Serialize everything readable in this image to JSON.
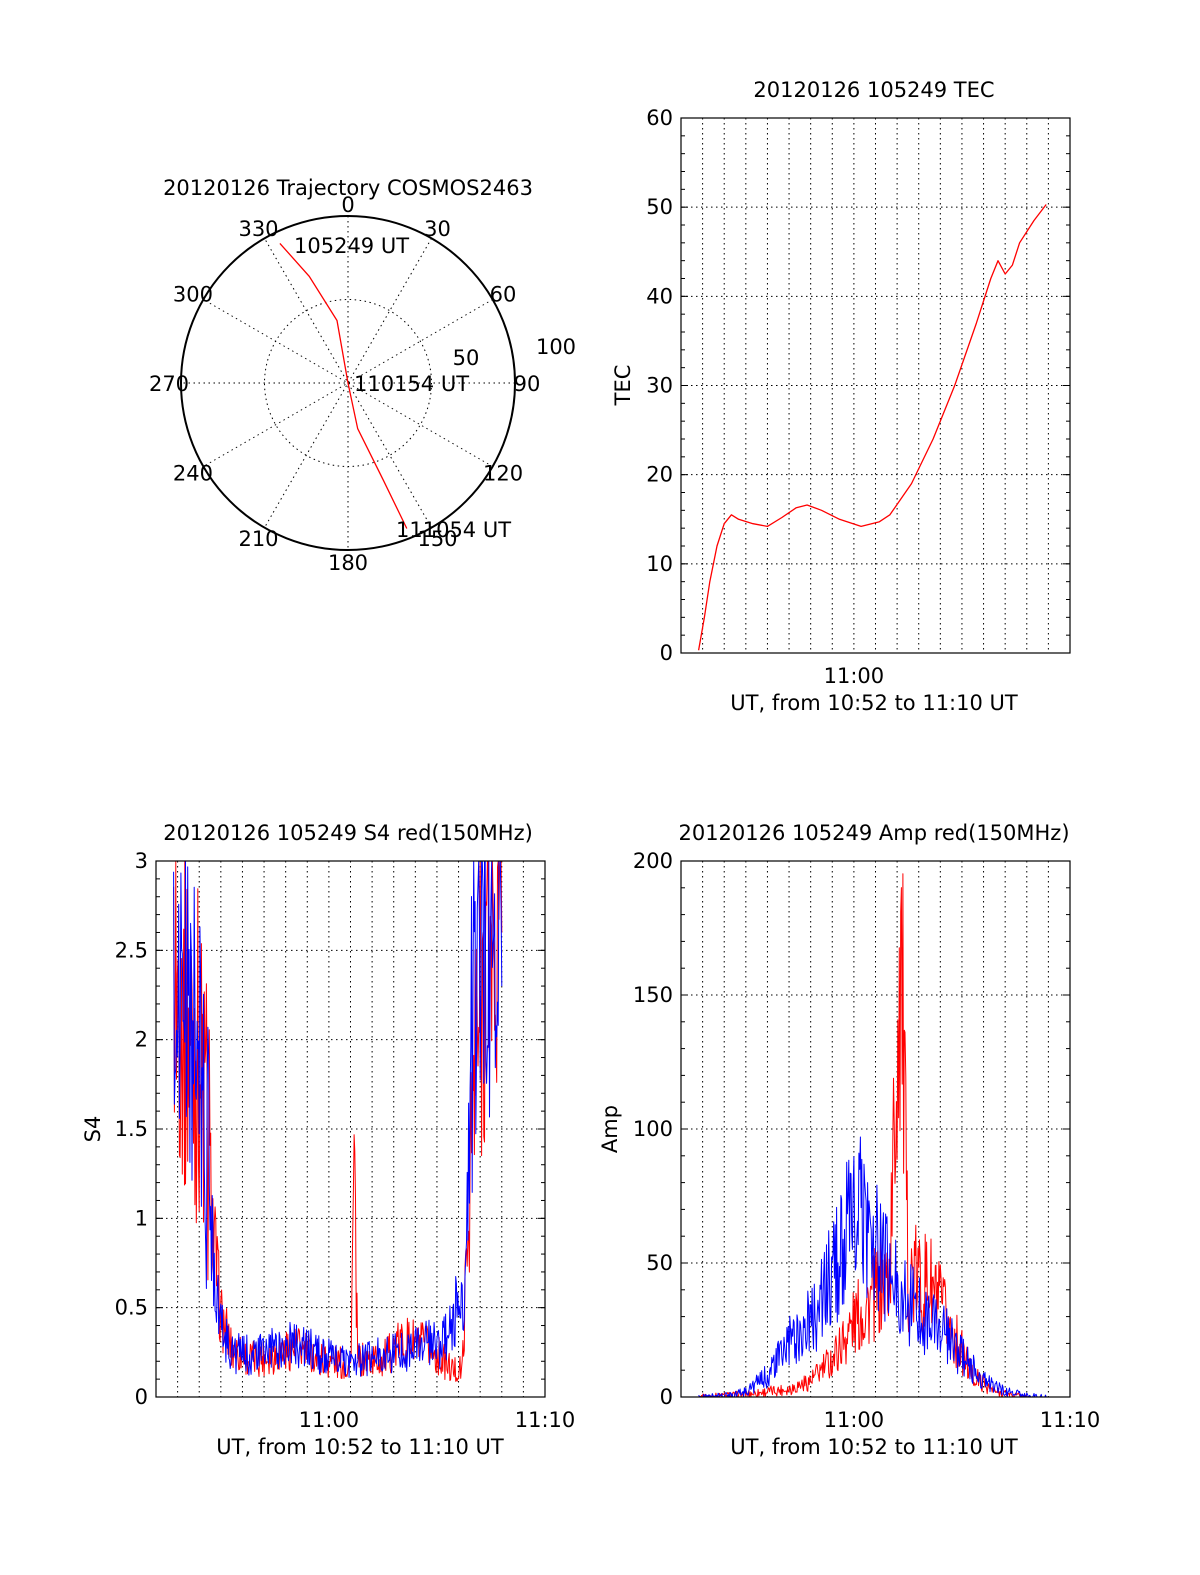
{
  "chart_data": [
    {
      "id": "trajectory",
      "type": "polar",
      "title": "20120126 Trajectory COSMOS2463",
      "azimuth_labels": [
        "0",
        "30",
        "60",
        "90",
        "120",
        "150",
        "180",
        "210",
        "240",
        "270",
        "300",
        "330"
      ],
      "ring_labels": [
        "50",
        "100"
      ],
      "series": [
        {
          "color": "#ff0000",
          "points_az_dist": [
            [
              334,
              93
            ],
            [
              340,
              68
            ],
            [
              350,
              38
            ],
            [
              0,
              0
            ],
            [
              168,
              28
            ],
            [
              160,
              62
            ],
            [
              158,
              94
            ]
          ]
        }
      ],
      "annotations": [
        {
          "text": "105249 UT",
          "at": "start"
        },
        {
          "text": "110154 UT",
          "at": "center"
        },
        {
          "text": "111054 UT",
          "at": "end"
        }
      ]
    },
    {
      "id": "tec",
      "type": "line",
      "title": "20120126 105249 TEC",
      "ylabel": "TEC",
      "xlabel": "UT, from 10:52 to 11:10 UT",
      "xlim": [
        "10:52",
        "11:10"
      ],
      "ylim": [
        0,
        60
      ],
      "yticks": [
        "0",
        "10",
        "20",
        "30",
        "40",
        "50",
        "60"
      ],
      "xtick_labels": [
        {
          "at": "11:00",
          "label": "11:00"
        }
      ],
      "grid": true,
      "series": [
        {
          "color": "#ff0000",
          "points": [
            [
              "10:52:49",
              0.3
            ],
            [
              "10:53:05",
              4
            ],
            [
              "10:53:20",
              8
            ],
            [
              "10:53:40",
              12
            ],
            [
              "10:54:00",
              14.5
            ],
            [
              "10:54:20",
              15.5
            ],
            [
              "10:54:40",
              15
            ],
            [
              "10:55:20",
              14.5
            ],
            [
              "10:56:00",
              14.2
            ],
            [
              "10:56:40",
              15.2
            ],
            [
              "10:57:20",
              16.3
            ],
            [
              "10:57:50",
              16.6
            ],
            [
              "10:58:30",
              16
            ],
            [
              "10:59:20",
              15
            ],
            [
              "11:00:20",
              14.2
            ],
            [
              "11:01:10",
              14.7
            ],
            [
              "11:01:40",
              15.5
            ],
            [
              "11:02:40",
              19
            ],
            [
              "11:03:40",
              24
            ],
            [
              "11:04:40",
              30
            ],
            [
              "11:05:40",
              37
            ],
            [
              "11:06:20",
              42
            ],
            [
              "11:06:40",
              44
            ],
            [
              "11:07:00",
              42.5
            ],
            [
              "11:07:20",
              43.5
            ],
            [
              "11:07:40",
              46
            ],
            [
              "11:08:20",
              48.5
            ],
            [
              "11:08:54",
              50.3
            ]
          ]
        }
      ]
    },
    {
      "id": "s4",
      "type": "line",
      "title": "20120126 105249 S4 red(150MHz)",
      "ylabel": "S4",
      "xlabel": "UT, from 10:52 to 11:10 UT",
      "xlim": [
        "10:52",
        "11:10"
      ],
      "ylim": [
        0,
        3
      ],
      "yticks": [
        "0",
        "0.5",
        "1",
        "1.5",
        "2",
        "2.5",
        "3"
      ],
      "xtick_labels": [
        {
          "at": "11:00",
          "label": "11:00"
        },
        {
          "at": "11:10",
          "label": "11:10"
        }
      ],
      "grid": true,
      "series": [
        {
          "color": "#ff0000",
          "points": [
            [
              "10:52:49",
              2.4
            ],
            [
              "10:53:20",
              2.1
            ],
            [
              "10:54:00",
              1.9
            ],
            [
              "10:54:20",
              1.5
            ],
            [
              "10:54:40",
              0.9
            ],
            [
              "10:55:00",
              0.45
            ],
            [
              "10:55:30",
              0.27
            ],
            [
              "10:56:30",
              0.21
            ],
            [
              "10:57:30",
              0.24
            ],
            [
              "10:58:30",
              0.28
            ],
            [
              "10:59:30",
              0.22
            ],
            [
              "11:00:30",
              0.19
            ],
            [
              "11:01:00",
              0.17
            ],
            [
              "11:01:10",
              1.25
            ],
            [
              "11:01:20",
              0.2
            ],
            [
              "11:02:30",
              0.21
            ],
            [
              "11:03:30",
              0.32
            ],
            [
              "11:04:30",
              0.28
            ],
            [
              "11:05:10",
              0.22
            ],
            [
              "11:05:40",
              0.15
            ],
            [
              "11:06:10",
              0.15
            ],
            [
              "11:06:40",
              1.6
            ],
            [
              "11:07:10",
              2.4
            ],
            [
              "11:08:00",
              2.6
            ]
          ]
        },
        {
          "color": "#0000ff",
          "points": [
            [
              "10:52:49",
              2.2
            ],
            [
              "10:53:20",
              2.3
            ],
            [
              "10:54:00",
              1.8
            ],
            [
              "10:54:20",
              1.4
            ],
            [
              "10:54:40",
              0.8
            ],
            [
              "10:55:00",
              0.4
            ],
            [
              "10:55:30",
              0.25
            ],
            [
              "10:56:30",
              0.23
            ],
            [
              "10:57:30",
              0.27
            ],
            [
              "10:58:30",
              0.3
            ],
            [
              "10:59:30",
              0.24
            ],
            [
              "11:00:30",
              0.2
            ],
            [
              "11:01:30",
              0.2
            ],
            [
              "11:02:30",
              0.24
            ],
            [
              "11:03:30",
              0.26
            ],
            [
              "11:04:30",
              0.3
            ],
            [
              "11:05:10",
              0.28
            ],
            [
              "11:05:40",
              0.38
            ],
            [
              "11:06:00",
              0.55
            ],
            [
              "11:06:20",
              0.6
            ],
            [
              "11:06:40",
              2.2
            ],
            [
              "11:07:10",
              2.6
            ],
            [
              "11:08:00",
              2.3
            ]
          ]
        }
      ]
    },
    {
      "id": "amp",
      "type": "line",
      "title": "20120126 105249 Amp red(150MHz)",
      "ylabel": "Amp",
      "xlabel": "UT, from 10:52 to 11:10 UT",
      "xlim": [
        "10:52",
        "11:10"
      ],
      "ylim": [
        0,
        200
      ],
      "yticks": [
        "0",
        "50",
        "100",
        "150",
        "200"
      ],
      "xtick_labels": [
        {
          "at": "11:00",
          "label": "11:00"
        },
        {
          "at": "11:10",
          "label": "11:10"
        }
      ],
      "grid": true,
      "series": [
        {
          "color": "#ff0000",
          "points": [
            [
              "10:52:49",
              0
            ],
            [
              "10:55:00",
              1
            ],
            [
              "10:57:00",
              3
            ],
            [
              "10:58:00",
              6
            ],
            [
              "10:59:00",
              14
            ],
            [
              "11:00:00",
              28
            ],
            [
              "11:01:00",
              38
            ],
            [
              "11:01:40",
              45
            ],
            [
              "11:02:10",
              175
            ],
            [
              "11:02:30",
              45
            ],
            [
              "11:03:30",
              42
            ],
            [
              "11:04:30",
              25
            ],
            [
              "11:05:30",
              8
            ],
            [
              "11:06:30",
              2
            ],
            [
              "11:08:00",
              0
            ]
          ]
        },
        {
          "color": "#0000ff",
          "points": [
            [
              "10:52:49",
              0
            ],
            [
              "10:54:00",
              0.5
            ],
            [
              "10:55:00",
              2
            ],
            [
              "10:56:00",
              8
            ],
            [
              "10:57:00",
              20
            ],
            [
              "10:58:00",
              28
            ],
            [
              "10:59:00",
              45
            ],
            [
              "10:59:40",
              60
            ],
            [
              "11:00:20",
              70
            ],
            [
              "11:01:00",
              55
            ],
            [
              "11:02:00",
              40
            ],
            [
              "11:03:00",
              32
            ],
            [
              "11:04:00",
              25
            ],
            [
              "11:05:00",
              15
            ],
            [
              "11:06:00",
              6
            ],
            [
              "11:07:00",
              2
            ],
            [
              "11:08:00",
              0.5
            ],
            [
              "11:08:54",
              0
            ]
          ]
        }
      ]
    }
  ]
}
